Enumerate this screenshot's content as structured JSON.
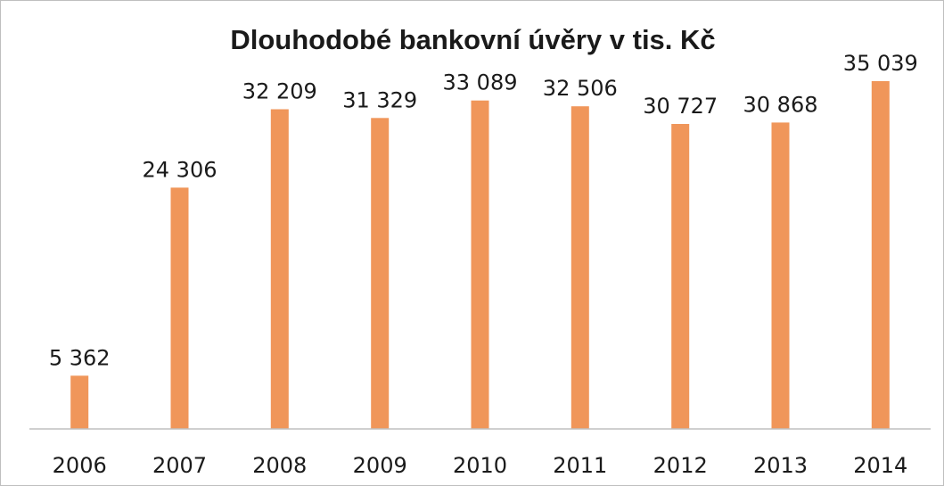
{
  "chart_data": {
    "type": "bar",
    "title": "Dlouhodobé bankovní úvěry v tis. Kč",
    "categories": [
      "2006",
      "2007",
      "2008",
      "2009",
      "2010",
      "2011",
      "2012",
      "2013",
      "2014"
    ],
    "values": [
      5362,
      24306,
      32209,
      31329,
      33089,
      32506,
      30727,
      30868,
      35039
    ],
    "data_labels": [
      "5 362",
      "24 306",
      "32 209",
      "31 329",
      "33 089",
      "32 506",
      "30 727",
      "30 868",
      "35 039"
    ],
    "ylim": [
      0,
      38000
    ],
    "grid": false,
    "legend": "none",
    "bar_color": "#f0965a",
    "axis_color": "#bfbfbf"
  }
}
